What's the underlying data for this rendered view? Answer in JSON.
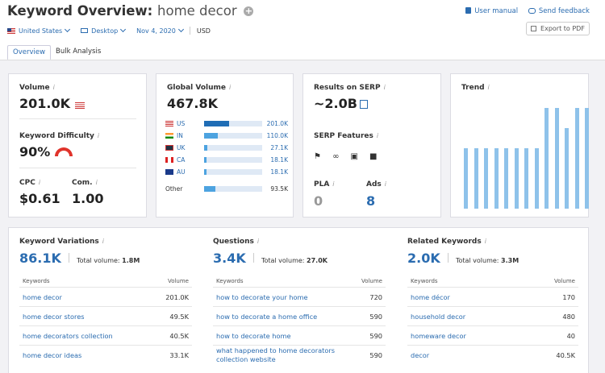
{
  "header": {
    "title_prefix": "Keyword Overview:",
    "keyword": "home decor",
    "plus_glyph": "+",
    "user_manual": "User manual",
    "send_feedback": "Send feedback",
    "export": "Export to PDF"
  },
  "filters": {
    "country": "United States",
    "device": "Desktop",
    "date": "Nov 4, 2020",
    "currency": "USD"
  },
  "tabs": [
    "Overview",
    "Bulk Analysis"
  ],
  "volume": {
    "label": "Volume",
    "value": "201.0K",
    "info": "i"
  },
  "kd": {
    "label": "Keyword Difficulty",
    "value": "90%"
  },
  "cpc": {
    "label": "CPC",
    "value": "$0.61"
  },
  "com": {
    "label": "Com.",
    "value": "1.00"
  },
  "global": {
    "label": "Global Volume",
    "value": "467.8K",
    "rows": [
      {
        "code": "US",
        "value": "201.0K",
        "share": 0.43,
        "color": "#1f6db5"
      },
      {
        "code": "IN",
        "value": "110.0K",
        "share": 0.24,
        "color": "#4da3e0"
      },
      {
        "code": "UK",
        "value": "27.1K",
        "share": 0.06,
        "color": "#4da3e0"
      },
      {
        "code": "CA",
        "value": "18.1K",
        "share": 0.04,
        "color": "#4da3e0"
      },
      {
        "code": "AU",
        "value": "18.1K",
        "share": 0.04,
        "color": "#4da3e0"
      }
    ],
    "other": {
      "label": "Other",
      "value": "93.5K",
      "share": 0.2
    }
  },
  "serp": {
    "results_label": "Results on SERP",
    "results_value": "~2.0B",
    "features_label": "SERP Features",
    "features": [
      "map-pin-icon",
      "link-icon",
      "image-icon",
      "video-icon"
    ],
    "pla_label": "PLA",
    "pla_value": "0",
    "ads_label": "Ads",
    "ads_value": "8"
  },
  "trend": {
    "label": "Trend",
    "values": [
      0.6,
      0.6,
      0.6,
      0.6,
      0.6,
      0.6,
      0.6,
      0.6,
      1.0,
      1.0,
      0.8,
      1.0,
      1.0
    ]
  },
  "variations": {
    "label": "Keyword Variations",
    "count": "86.1K",
    "total_label": "Total volume:",
    "total": "1.8M",
    "col_keywords": "Keywords",
    "col_volume": "Volume",
    "rows": [
      {
        "k": "home decor",
        "v": "201.0K"
      },
      {
        "k": "home decor stores",
        "v": "49.5K"
      },
      {
        "k": "home decorators collection",
        "v": "40.5K"
      },
      {
        "k": "home decor ideas",
        "v": "33.1K"
      }
    ]
  },
  "questions": {
    "label": "Questions",
    "count": "3.4K",
    "total_label": "Total volume:",
    "total": "27.0K",
    "col_keywords": "Keywords",
    "col_volume": "Volume",
    "rows": [
      {
        "k": "how to decorate your home",
        "v": "720"
      },
      {
        "k": "how to decorate a home office",
        "v": "590"
      },
      {
        "k": "how to decorate home",
        "v": "590"
      },
      {
        "k": "what happened to home decorators",
        "k2": "collection website",
        "v": "590"
      }
    ]
  },
  "related": {
    "label": "Related Keywords",
    "count": "2.0K",
    "total_label": "Total volume:",
    "total": "3.3M",
    "col_keywords": "Keywords",
    "col_volume": "Volume",
    "rows": [
      {
        "k": "home décor",
        "v": "170"
      },
      {
        "k": "household decor",
        "v": "480"
      },
      {
        "k": "homeware decor",
        "v": "40"
      },
      {
        "k": "decor",
        "v": "40.5K"
      }
    ]
  }
}
